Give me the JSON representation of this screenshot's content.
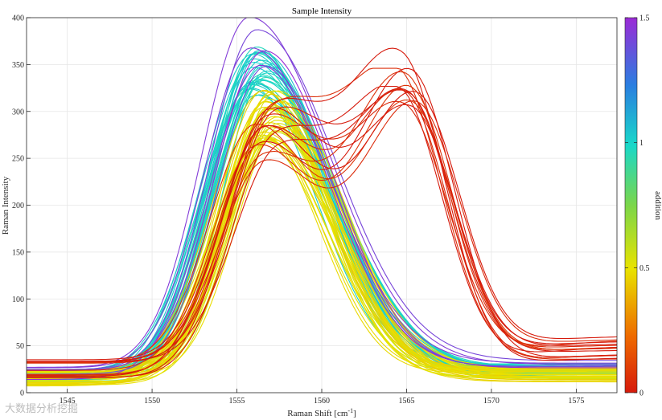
{
  "chart_data": {
    "type": "line",
    "title": "Sample Intensity",
    "xlabel": "Raman Shift [cm",
    "xlabel_sup": "-1",
    "xlabel_end": "]",
    "ylabel": "Raman Intensity",
    "xlim": [
      1542.6,
      1577.4
    ],
    "ylim": [
      0,
      400
    ],
    "xticks": [
      1545,
      1550,
      1555,
      1560,
      1565,
      1570,
      1575
    ],
    "yticks": [
      0,
      50,
      100,
      150,
      200,
      250,
      300,
      350,
      400
    ],
    "grid": true,
    "colorbar": {
      "label": "addition",
      "range": [
        0,
        1.5
      ],
      "ticks": [
        0,
        0.5,
        1,
        1.5
      ],
      "tick_labels": [
        "0",
        "0.5",
        "1",
        "1.5"
      ]
    },
    "series_groups": [
      {
        "name": "addition ~0 (red, double peak)",
        "addition": 0.02,
        "count": 14,
        "peak1_x": 1556.6,
        "peak1_y": 290,
        "peak2_x": 1565.0,
        "peak2_y": 325,
        "baseline_left": 22,
        "baseline_right": 45
      },
      {
        "name": "addition ~0.5 (yellow)",
        "addition": 0.5,
        "count": 36,
        "peak_x": 1557.0,
        "peak_y": 295,
        "baseline_left": 15,
        "baseline_right": 18
      },
      {
        "name": "addition ~1.0 (cyan)",
        "addition": 1.0,
        "count": 30,
        "peak_x": 1556.2,
        "peak_y": 345,
        "baseline_left": 18,
        "baseline_right": 22
      },
      {
        "name": "addition ~1.4 (violet)",
        "addition": 1.45,
        "count": 6,
        "peak_x": 1556.3,
        "peak_y": 375,
        "baseline_left": 22,
        "baseline_right": 30
      }
    ]
  },
  "watermark": "大数据分析挖掘"
}
